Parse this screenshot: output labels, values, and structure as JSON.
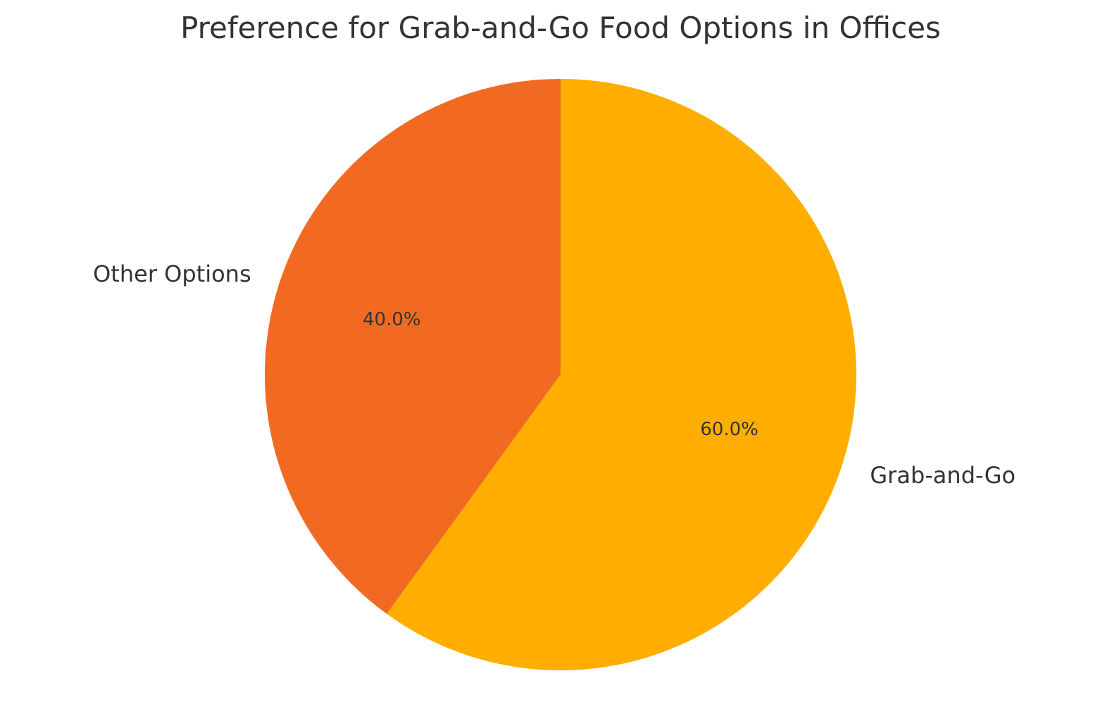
{
  "chart_data": {
    "type": "pie",
    "title": "Preference for Grab-and-Go Food Options in Offices",
    "start_angle_deg": 90,
    "direction": "clockwise",
    "slices": [
      {
        "label": "Grab-and-Go",
        "value": 60.0,
        "pct_label": "60.0%",
        "color": "#FFAE00"
      },
      {
        "label": "Other Options",
        "value": 40.0,
        "pct_label": "40.0%",
        "color": "#F26A22"
      }
    ]
  }
}
